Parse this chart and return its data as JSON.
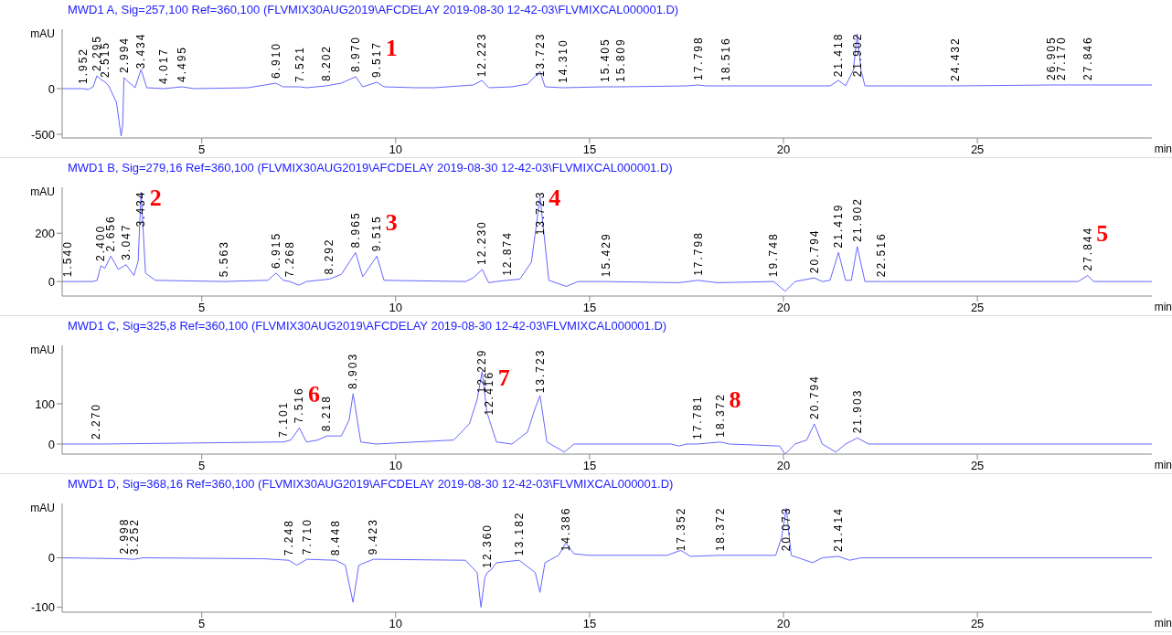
{
  "chart_data": [
    {
      "type": "line",
      "title": "MWD1 A, Sig=257,100 Ref=360,100 (FLVMIX30AUG2019\\AFCDELAY 2019-08-30 12-42-03\\FLVMIXCAL000001.D)",
      "xlabel": "min",
      "ylabel": "mAU",
      "color": "#6666ff",
      "x": [
        1.4,
        1.952,
        2.07,
        2.2,
        2.295,
        2.4,
        2.515,
        2.6,
        2.8,
        2.92,
        2.96,
        2.994,
        3.09,
        3.28,
        3.434,
        3.58,
        4.017,
        4.495,
        4.8,
        6.2,
        6.91,
        7.1,
        7.521,
        7.7,
        8.202,
        8.6,
        8.97,
        9.15,
        9.517,
        9.7,
        10.5,
        11.0,
        12.0,
        12.223,
        12.4,
        13.0,
        13.4,
        13.723,
        13.85,
        14.31,
        15.405,
        15.809,
        17.5,
        17.798,
        18.0,
        18.516,
        21.2,
        21.418,
        21.6,
        21.8,
        21.902,
        22.0,
        22.1,
        23.0,
        24.432,
        26.905,
        27.17,
        27.846,
        29.5
      ],
      "values": [
        0,
        0,
        -10,
        20,
        140,
        100,
        70,
        30,
        -150,
        -520,
        -400,
        120,
        80,
        10,
        210,
        10,
        0,
        20,
        0,
        10,
        60,
        20,
        20,
        10,
        30,
        60,
        130,
        20,
        70,
        20,
        10,
        10,
        40,
        90,
        10,
        20,
        50,
        190,
        20,
        10,
        20,
        20,
        30,
        40,
        30,
        30,
        30,
        90,
        30,
        200,
        600,
        200,
        30,
        30,
        30,
        40,
        40,
        40,
        40
      ],
      "xlim": [
        1.4,
        29.5
      ],
      "xticks": [
        5,
        10,
        15,
        20,
        25
      ],
      "ylim": [
        -540,
        650
      ],
      "yticks": [
        -500,
        0
      ],
      "annotations": [
        {
          "text": "1.952",
          "x": 1.952,
          "y": 0
        },
        {
          "text": "2.295",
          "x": 2.295,
          "y": 140
        },
        {
          "text": "2.515",
          "x": 2.515,
          "y": 70
        },
        {
          "text": "2.994",
          "x": 2.994,
          "y": 120
        },
        {
          "text": "3.434",
          "x": 3.434,
          "y": 210
        },
        {
          "text": "4.017",
          "x": 4.017,
          "y": 0
        },
        {
          "text": "4.495",
          "x": 4.495,
          "y": 20
        },
        {
          "text": "6.910",
          "x": 6.91,
          "y": 60
        },
        {
          "text": "7.521",
          "x": 7.521,
          "y": 20
        },
        {
          "text": "8.202",
          "x": 8.202,
          "y": 30
        },
        {
          "text": "8.970",
          "x": 8.97,
          "y": 130
        },
        {
          "text": "9.517",
          "x": 9.517,
          "y": 70
        },
        {
          "text": "12.223",
          "x": 12.223,
          "y": 90
        },
        {
          "text": "13.723",
          "x": 13.723,
          "y": 190
        },
        {
          "text": "14.310",
          "x": 14.31,
          "y": 10
        },
        {
          "text": "15.405",
          "x": 15.405,
          "y": 20
        },
        {
          "text": "15.809",
          "x": 15.809,
          "y": 20
        },
        {
          "text": "17.798",
          "x": 17.798,
          "y": 40
        },
        {
          "text": "18.516",
          "x": 18.516,
          "y": 30
        },
        {
          "text": "21.418",
          "x": 21.418,
          "y": 90
        },
        {
          "text": "21.902",
          "x": 21.902,
          "y": 600
        },
        {
          "text": "24.432",
          "x": 24.432,
          "y": 30
        },
        {
          "text": "26.905",
          "x": 26.905,
          "y": 40
        },
        {
          "text": "27.170",
          "x": 27.17,
          "y": 40
        },
        {
          "text": "27.846",
          "x": 27.846,
          "y": 40
        },
        {
          "text": "1",
          "x": 9.517,
          "y": 70
        }
      ]
    },
    {
      "type": "line",
      "title": "MWD1 B, Sig=279,16 Ref=360,100 (FLVMIX30AUG2019\\AFCDELAY 2019-08-30 12-42-03\\FLVMIXCAL000001.D)",
      "xlabel": "min",
      "ylabel": "mAU",
      "color": "#6666ff",
      "x": [
        1.4,
        1.54,
        2.2,
        2.3,
        2.4,
        2.5,
        2.656,
        2.85,
        3.047,
        3.25,
        3.36,
        3.434,
        3.55,
        3.8,
        5.563,
        6.7,
        6.915,
        7.1,
        7.268,
        7.5,
        7.7,
        8.292,
        8.6,
        8.965,
        9.15,
        9.515,
        9.7,
        11.8,
        12.0,
        12.23,
        12.4,
        12.6,
        12.874,
        13.2,
        13.5,
        13.723,
        13.95,
        14.4,
        14.7,
        15.429,
        17.3,
        17.798,
        18.3,
        19.748,
        20.04,
        20.3,
        20.794,
        21.0,
        21.2,
        21.419,
        21.6,
        21.75,
        21.902,
        22.1,
        22.516,
        27.6,
        27.844,
        28.0,
        29.5
      ],
      "values": [
        0,
        0,
        0,
        5,
        65,
        55,
        105,
        50,
        70,
        25,
        85,
        370,
        35,
        5,
        0,
        5,
        35,
        5,
        0,
        -15,
        0,
        10,
        30,
        120,
        20,
        105,
        5,
        0,
        15,
        50,
        -5,
        0,
        5,
        10,
        80,
        350,
        5,
        -20,
        0,
        0,
        -5,
        5,
        -5,
        0,
        -40,
        0,
        15,
        0,
        5,
        120,
        5,
        5,
        145,
        0,
        0,
        0,
        25,
        0,
        0
      ],
      "xlim": [
        1.4,
        29.5
      ],
      "xticks": [
        5,
        10,
        15,
        20,
        25
      ],
      "ylim": [
        -60,
        390
      ],
      "yticks": [
        0,
        200
      ],
      "annotations": [
        {
          "text": "1.540",
          "x": 1.54,
          "y": 0
        },
        {
          "text": "2.400",
          "x": 2.4,
          "y": 65
        },
        {
          "text": "2.656",
          "x": 2.656,
          "y": 105
        },
        {
          "text": "3.047",
          "x": 3.047,
          "y": 70
        },
        {
          "text": "3.434",
          "x": 3.434,
          "y": 370
        },
        {
          "text": "5.563",
          "x": 5.563,
          "y": 0
        },
        {
          "text": "6.915",
          "x": 6.915,
          "y": 35
        },
        {
          "text": "7.268",
          "x": 7.268,
          "y": 0
        },
        {
          "text": "8.292",
          "x": 8.292,
          "y": 10
        },
        {
          "text": "8.965",
          "x": 8.965,
          "y": 120
        },
        {
          "text": "9.515",
          "x": 9.515,
          "y": 105
        },
        {
          "text": "12.230",
          "x": 12.23,
          "y": 50
        },
        {
          "text": "12.874",
          "x": 12.874,
          "y": 5
        },
        {
          "text": "13.723",
          "x": 13.723,
          "y": 350
        },
        {
          "text": "15.429",
          "x": 15.429,
          "y": 0
        },
        {
          "text": "17.798",
          "x": 17.798,
          "y": 5
        },
        {
          "text": "19.748",
          "x": 19.748,
          "y": 0
        },
        {
          "text": "20.794",
          "x": 20.794,
          "y": 15
        },
        {
          "text": "21.419",
          "x": 21.419,
          "y": 120
        },
        {
          "text": "21.902",
          "x": 21.902,
          "y": 145
        },
        {
          "text": "22.516",
          "x": 22.516,
          "y": 0
        },
        {
          "text": "27.844",
          "x": 27.844,
          "y": 25
        },
        {
          "text": "2",
          "x": 3.434,
          "y": 370
        },
        {
          "text": "3",
          "x": 9.515,
          "y": 105
        },
        {
          "text": "4",
          "x": 13.723,
          "y": 350
        },
        {
          "text": "5",
          "x": 27.844,
          "y": 25
        }
      ]
    },
    {
      "type": "line",
      "title": "MWD1 C, Sig=325,8 Ref=360,100 (FLVMIX30AUG2019\\AFCDELAY 2019-08-30 12-42-03\\FLVMIXCAL000001.D)",
      "xlabel": "min",
      "ylabel": "mAU",
      "color": "#6666ff",
      "x": [
        1.4,
        2.27,
        2.5,
        7.0,
        7.101,
        7.3,
        7.516,
        7.7,
        8.0,
        8.218,
        8.6,
        8.8,
        8.903,
        9.1,
        9.5,
        11.5,
        11.9,
        12.1,
        12.229,
        12.35,
        12.416,
        12.6,
        13.0,
        13.4,
        13.6,
        13.723,
        13.9,
        14.35,
        14.6,
        17.1,
        17.3,
        17.5,
        17.781,
        18.372,
        18.6,
        19.9,
        20.04,
        20.3,
        20.6,
        20.794,
        21.0,
        21.35,
        21.6,
        21.903,
        22.2,
        29.5
      ],
      "values": [
        0,
        0,
        0,
        5,
        5,
        10,
        40,
        5,
        10,
        20,
        20,
        60,
        125,
        5,
        0,
        10,
        50,
        110,
        180,
        80,
        60,
        5,
        0,
        30,
        90,
        120,
        5,
        -20,
        0,
        0,
        -5,
        0,
        0,
        5,
        0,
        -5,
        -25,
        0,
        10,
        50,
        0,
        -20,
        0,
        15,
        0,
        0
      ],
      "xlim": [
        1.4,
        29.5
      ],
      "xticks": [
        5,
        10,
        15,
        20,
        25
      ],
      "ylim": [
        -25,
        245
      ],
      "yticks": [
        0,
        100
      ],
      "annotations": [
        {
          "text": "2.270",
          "x": 2.27,
          "y": 0
        },
        {
          "text": "7.101",
          "x": 7.101,
          "y": 5
        },
        {
          "text": "7.516",
          "x": 7.516,
          "y": 40
        },
        {
          "text": "8.218",
          "x": 8.218,
          "y": 20
        },
        {
          "text": "8.903",
          "x": 8.903,
          "y": 125
        },
        {
          "text": "12.229",
          "x": 12.229,
          "y": 180
        },
        {
          "text": "12.416",
          "x": 12.416,
          "y": 60
        },
        {
          "text": "13.723",
          "x": 13.723,
          "y": 120
        },
        {
          "text": "17.781",
          "x": 17.781,
          "y": 0
        },
        {
          "text": "18.372",
          "x": 18.372,
          "y": 5
        },
        {
          "text": "20.794",
          "x": 20.794,
          "y": 50
        },
        {
          "text": "21.903",
          "x": 21.903,
          "y": 15
        },
        {
          "text": "6",
          "x": 7.516,
          "y": 40
        },
        {
          "text": "7",
          "x": 12.416,
          "y": 60
        },
        {
          "text": "8",
          "x": 18.372,
          "y": 5
        }
      ]
    },
    {
      "type": "line",
      "title": "MWD1 D, Sig=368,16 Ref=360,100 (FLVMIX30AUG2019\\AFCDELAY 2019-08-30 12-42-03\\FLVMIXCAL000001.D)",
      "xlabel": "min",
      "ylabel": "mAU",
      "color": "#6666ff",
      "x": [
        1.4,
        2.998,
        3.252,
        3.5,
        6.6,
        7.248,
        7.45,
        7.71,
        8.448,
        8.7,
        8.9,
        9.05,
        9.423,
        11.8,
        12.1,
        12.2,
        12.3,
        12.36,
        12.45,
        12.6,
        13.182,
        13.6,
        13.72,
        13.85,
        14.2,
        14.386,
        14.6,
        15.0,
        17.0,
        17.352,
        17.6,
        18.372,
        19.8,
        19.95,
        20.073,
        20.2,
        20.75,
        21.0,
        21.414,
        21.7,
        22.0,
        29.5
      ],
      "values": [
        0,
        -2,
        -3,
        0,
        -2,
        -5,
        -15,
        -3,
        -5,
        -15,
        -90,
        -15,
        -3,
        -5,
        -30,
        -100,
        -40,
        -30,
        -25,
        -10,
        -5,
        -30,
        -70,
        -10,
        5,
        30,
        8,
        5,
        5,
        15,
        3,
        5,
        5,
        40,
        100,
        5,
        -10,
        0,
        3,
        -5,
        0,
        0
      ],
      "xlim": [
        1.4,
        29.5
      ],
      "xticks": [
        5,
        10,
        15,
        20,
        25
      ],
      "ylim": [
        -110,
        110
      ],
      "yticks": [
        -100,
        0
      ],
      "annotations": [
        {
          "text": "2.998",
          "x": 2.998,
          "y": -2
        },
        {
          "text": "3.252",
          "x": 3.252,
          "y": -3
        },
        {
          "text": "7.248",
          "x": 7.248,
          "y": -5
        },
        {
          "text": "7.710",
          "x": 7.71,
          "y": -3
        },
        {
          "text": "8.448",
          "x": 8.448,
          "y": -5
        },
        {
          "text": "9.423",
          "x": 9.423,
          "y": -3
        },
        {
          "text": "12.360",
          "x": 12.36,
          "y": -30
        },
        {
          "text": "13.182",
          "x": 13.182,
          "y": -5
        },
        {
          "text": "14.386",
          "x": 14.386,
          "y": 30
        },
        {
          "text": "17.352",
          "x": 17.352,
          "y": 15
        },
        {
          "text": "18.372",
          "x": 18.372,
          "y": 5
        },
        {
          "text": "20.073",
          "x": 20.073,
          "y": 100
        },
        {
          "text": "21.414",
          "x": 21.414,
          "y": 3
        }
      ]
    }
  ]
}
